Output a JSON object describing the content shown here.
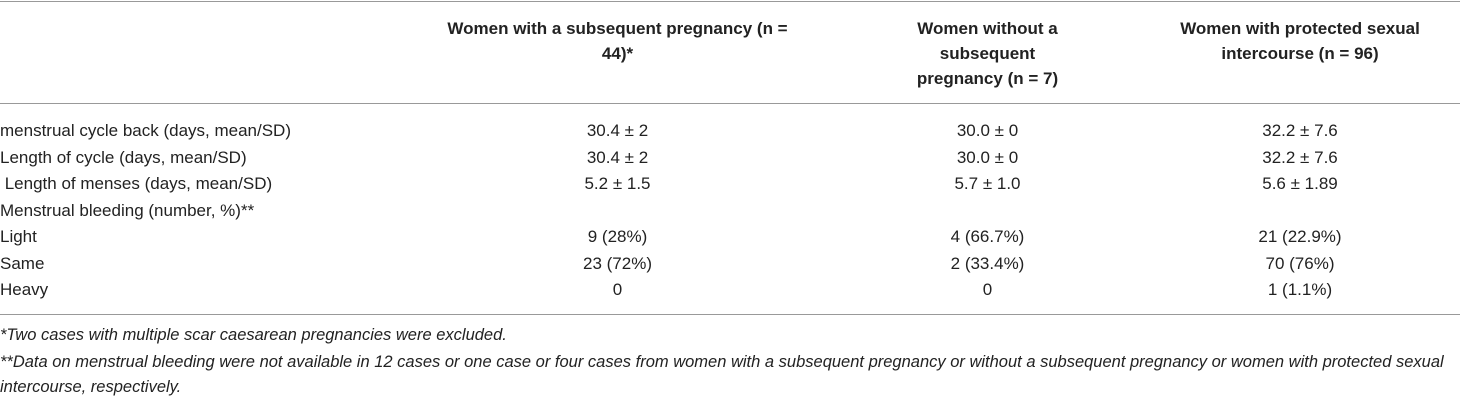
{
  "table": {
    "columns": [
      "Women with a subsequent pregnancy (n = 44)*",
      "Women without a subsequent pregnancy (n = 7)",
      "Women with protected sexual intercourse (n = 96)"
    ],
    "rows": [
      {
        "label": "menstrual cycle back (days, mean/SD)",
        "cells": [
          "30.4 ± 2",
          "30.0 ± 0",
          "32.2 ± 7.6"
        ]
      },
      {
        "label": "Length of cycle (days, mean/SD)",
        "cells": [
          "30.4 ± 2",
          "30.0 ± 0",
          "32.2 ± 7.6"
        ]
      },
      {
        "label": " Length of menses (days, mean/SD)",
        "cells": [
          "5.2 ± 1.5",
          "5.7 ± 1.0",
          "5.6 ± 1.89"
        ]
      },
      {
        "label": "Menstrual bleeding (number, %)**",
        "cells": []
      },
      {
        "label": "Light",
        "cells": [
          "9 (28%)",
          "4 (66.7%)",
          "21 (22.9%)"
        ]
      },
      {
        "label": "Same",
        "cells": [
          "23 (72%)",
          "2 (33.4%)",
          "70 (76%)"
        ]
      },
      {
        "label": "Heavy",
        "cells": [
          "0",
          "0",
          "1 (1.1%)"
        ]
      }
    ],
    "footnotes": [
      "*Two cases with multiple scar caesarean pregnancies were excluded.",
      "**Data on menstrual bleeding were not available in 12 cases or one case or four cases from women with a subsequent pregnancy or without a subsequent pregnancy or women with protected sexual intercourse, respectively."
    ]
  }
}
